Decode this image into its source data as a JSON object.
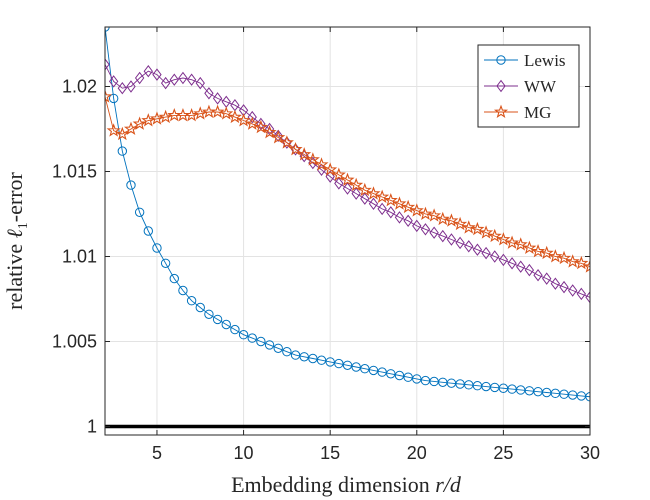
{
  "chart_data": {
    "type": "line",
    "title": "",
    "xlabel": "Embedding dimension r/d",
    "xlabel_parts": {
      "text": "Embedding dimension ",
      "italic": "r/d"
    },
    "ylabel": "relative ℓ1-error",
    "ylabel_parts": {
      "before": "relative ",
      "italic": "ℓ",
      "sub": "1",
      "after": "-error"
    },
    "xlim": [
      2,
      30
    ],
    "ylim": [
      0.9995,
      1.0235
    ],
    "xticks": [
      5,
      10,
      15,
      20,
      25,
      30
    ],
    "xtick_labels": [
      "5",
      "10",
      "15",
      "20",
      "25",
      "30"
    ],
    "yticks": [
      1,
      1.005,
      1.01,
      1.015,
      1.02
    ],
    "ytick_labels": [
      "1",
      "1.005",
      "1.01",
      "1.015",
      "1.02"
    ],
    "grid": true,
    "legend_position": "top-right",
    "x": [
      2,
      2.5,
      3,
      3.5,
      4,
      4.5,
      5,
      5.5,
      6,
      6.5,
      7,
      7.5,
      8,
      8.5,
      9,
      9.5,
      10,
      10.5,
      11,
      11.5,
      12,
      12.5,
      13,
      13.5,
      14,
      14.5,
      15,
      15.5,
      16,
      16.5,
      17,
      17.5,
      18,
      18.5,
      19,
      19.5,
      20,
      20.5,
      21,
      21.5,
      22,
      22.5,
      23,
      23.5,
      24,
      24.5,
      25,
      25.5,
      26,
      26.5,
      27,
      27.5,
      28,
      28.5,
      29,
      29.5,
      30
    ],
    "series": [
      {
        "name": "Lewis",
        "color": "#0072BD",
        "marker": "circle",
        "values": [
          1.0235,
          1.0193,
          1.0162,
          1.0142,
          1.0126,
          1.0115,
          1.0105,
          1.0096,
          1.0087,
          1.008,
          1.0074,
          1.007,
          1.0066,
          1.0063,
          1.006,
          1.0057,
          1.0054,
          1.0052,
          1.005,
          1.0048,
          1.0046,
          1.0044,
          1.0042,
          1.0041,
          1.004,
          1.0039,
          1.0038,
          1.0037,
          1.0036,
          1.0035,
          1.0034,
          1.0033,
          1.0032,
          1.0031,
          1.003,
          1.0029,
          1.0028,
          1.0027,
          1.00265,
          1.0026,
          1.00255,
          1.0025,
          1.00245,
          1.0024,
          1.00235,
          1.0023,
          1.00225,
          1.0022,
          1.00215,
          1.0021,
          1.00205,
          1.002,
          1.00195,
          1.0019,
          1.00185,
          1.0018,
          1.00175
        ]
      },
      {
        "name": "WW",
        "color": "#7E2F8E",
        "marker": "diamond",
        "values": [
          1.0213,
          1.0203,
          1.0199,
          1.02,
          1.0205,
          1.0209,
          1.0207,
          1.0202,
          1.0204,
          1.0205,
          1.0204,
          1.0202,
          1.0196,
          1.0193,
          1.0191,
          1.0189,
          1.0186,
          1.0182,
          1.0178,
          1.0175,
          1.0171,
          1.0167,
          1.0163,
          1.0159,
          1.0155,
          1.0151,
          1.0147,
          1.0143,
          1.014,
          1.0137,
          1.0134,
          1.0131,
          1.0128,
          1.0126,
          1.0123,
          1.0121,
          1.0118,
          1.0116,
          1.0114,
          1.0112,
          1.011,
          1.0108,
          1.0106,
          1.0104,
          1.0102,
          1.01,
          1.0098,
          1.0096,
          1.0094,
          1.0092,
          1.0089,
          1.0087,
          1.0084,
          1.0082,
          1.008,
          1.0078,
          1.0076
        ]
      },
      {
        "name": "MG",
        "color": "#D95319",
        "marker": "star",
        "values": [
          1.0194,
          1.0174,
          1.0172,
          1.0175,
          1.0178,
          1.018,
          1.0181,
          1.0182,
          1.0183,
          1.0183,
          1.0183,
          1.0184,
          1.0185,
          1.0185,
          1.0184,
          1.0182,
          1.018,
          1.0178,
          1.0176,
          1.0173,
          1.017,
          1.0167,
          1.0163,
          1.016,
          1.0157,
          1.0154,
          1.0151,
          1.0148,
          1.0145,
          1.0142,
          1.0139,
          1.0137,
          1.0135,
          1.0133,
          1.0131,
          1.0129,
          1.0127,
          1.0125,
          1.0124,
          1.0122,
          1.0121,
          1.0119,
          1.0117,
          1.0116,
          1.0114,
          1.0112,
          1.011,
          1.0108,
          1.0107,
          1.0105,
          1.0103,
          1.0102,
          1.01,
          1.0099,
          1.0097,
          1.0096,
          1.0094
        ]
      }
    ],
    "reference_line": {
      "y": 1,
      "color": "#000000"
    }
  }
}
